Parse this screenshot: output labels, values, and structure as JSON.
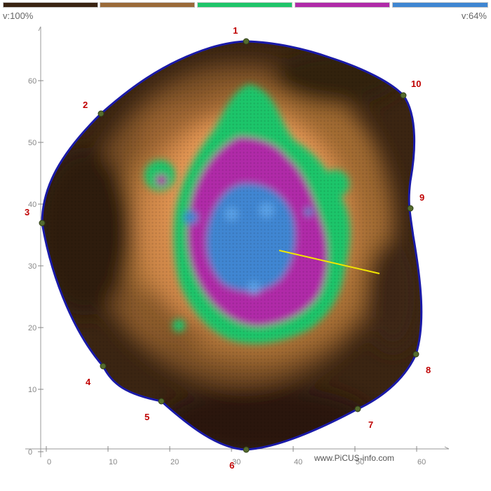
{
  "legend": {
    "left_value": "v:100%",
    "right_value": "v:64%",
    "colors": [
      "#3a2412",
      "#9a6a38",
      "#1fc56a",
      "#b02aa8",
      "#3f86d2"
    ]
  },
  "axes": {
    "x_ticks": [
      "0",
      "10",
      "20",
      "30",
      "40",
      "50",
      "60"
    ],
    "y_ticks": [
      "0",
      "10",
      "20",
      "30",
      "40",
      "50",
      "60"
    ]
  },
  "measurement_points": [
    "1",
    "2",
    "3",
    "4",
    "5",
    "6",
    "7",
    "8",
    "9",
    "10"
  ],
  "colors": {
    "outline": "#1a1aa8",
    "point": "#556b2f",
    "point_label": "#c00000",
    "axis": "#888888",
    "tick_label": "#888888",
    "path_line": "#f2e600"
  },
  "footer": {
    "credit": "www.PiCUS-info.com"
  }
}
